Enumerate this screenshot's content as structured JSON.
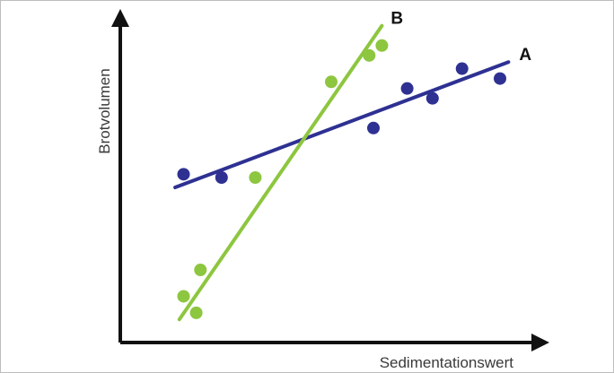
{
  "chart_data": {
    "type": "scatter",
    "title": "",
    "xlabel": "Sedimentationswert",
    "ylabel": "Brotvolumen",
    "xlim": [
      0,
      100
    ],
    "ylim": [
      0,
      100
    ],
    "grid": false,
    "axis_color": "#111111",
    "series": [
      {
        "name": "A",
        "color": "#2e3192",
        "points": [
          {
            "x": 15,
            "y": 51
          },
          {
            "x": 24,
            "y": 50
          },
          {
            "x": 60,
            "y": 65
          },
          {
            "x": 68,
            "y": 77
          },
          {
            "x": 74,
            "y": 74
          },
          {
            "x": 81,
            "y": 83
          },
          {
            "x": 90,
            "y": 80
          }
        ],
        "fit_line": [
          {
            "x": 13,
            "y": 47
          },
          {
            "x": 92,
            "y": 85
          }
        ]
      },
      {
        "name": "B",
        "color": "#8dc63f",
        "points": [
          {
            "x": 15,
            "y": 14
          },
          {
            "x": 18,
            "y": 9
          },
          {
            "x": 19,
            "y": 22
          },
          {
            "x": 32,
            "y": 50
          },
          {
            "x": 50,
            "y": 79
          },
          {
            "x": 59,
            "y": 87
          },
          {
            "x": 62,
            "y": 90
          }
        ],
        "fit_line": [
          {
            "x": 14,
            "y": 7
          },
          {
            "x": 62,
            "y": 96
          }
        ]
      }
    ]
  }
}
